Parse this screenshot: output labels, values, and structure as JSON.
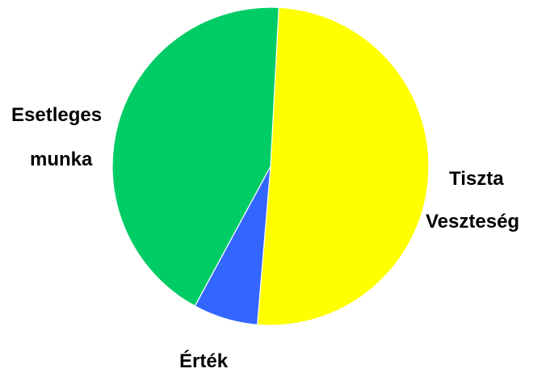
{
  "chart_data": {
    "type": "pie",
    "slices": [
      {
        "label": "Tiszta Veszteség",
        "lines": [
          "Tiszta",
          "Veszteség"
        ],
        "value": 50.5,
        "color": "#ffff00"
      },
      {
        "label": "Érték",
        "lines": [
          "Érték"
        ],
        "value": 6.6,
        "color": "#3366ff"
      },
      {
        "label": "Esetleges munka",
        "lines": [
          "Esetleges",
          "munka"
        ],
        "value": 42.9,
        "color": "#00cc66"
      }
    ],
    "start_angle_deg": 3,
    "direction": "clockwise",
    "legend": "none",
    "title": ""
  }
}
